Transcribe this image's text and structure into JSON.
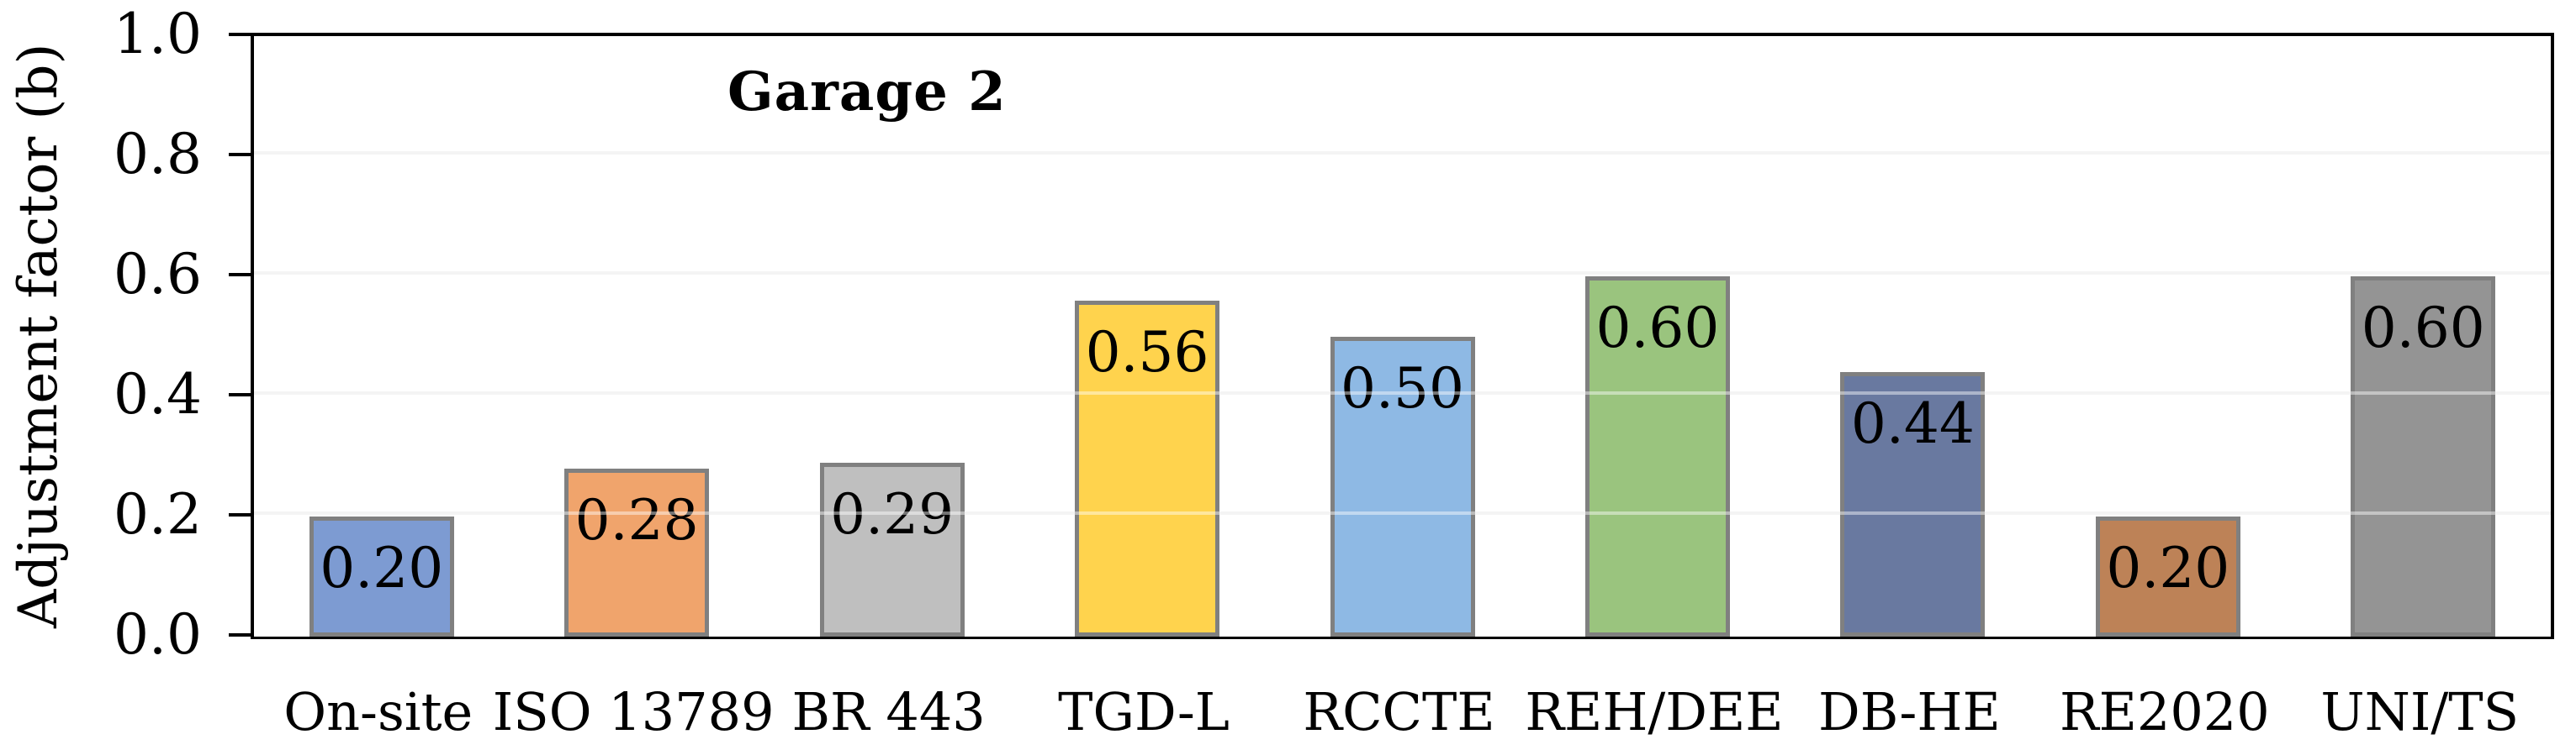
{
  "chart_data": {
    "type": "bar",
    "title": "Garage 2",
    "xlabel": "",
    "ylabel": "Adjustment factor (b)",
    "ylim": [
      0.0,
      1.0
    ],
    "yticks": [
      0.0,
      0.2,
      0.4,
      0.6,
      0.8,
      1.0
    ],
    "ytick_labels": [
      "0.0",
      "0.2",
      "0.4",
      "0.6",
      "0.8",
      "1.0"
    ],
    "grid": "horizontal-light-gray",
    "legend_position": "none",
    "categories": [
      "On-site",
      "ISO 13789",
      "BR 443",
      "TGD-L",
      "RCCTE",
      "REH/DEE",
      "DB-HE",
      "RE2020",
      "UNI/TS"
    ],
    "values": [
      0.2,
      0.28,
      0.29,
      0.56,
      0.5,
      0.6,
      0.44,
      0.2,
      0.6
    ],
    "value_labels": [
      "0.20",
      "0.28",
      "0.29",
      "0.56",
      "0.50",
      "0.60",
      "0.44",
      "0.20",
      "0.60"
    ],
    "value_label_position": "inside-top",
    "bar_colors": [
      "#7D9BD2",
      "#F0A46C",
      "#BFBFBF",
      "#FFD34D",
      "#8EB9E4",
      "#9AC47E",
      "#6979A0",
      "#BD8257",
      "#949494"
    ],
    "bar_border_color": "#808080",
    "gridline_color": "#EBEBEB",
    "axis_color": "#000000"
  }
}
